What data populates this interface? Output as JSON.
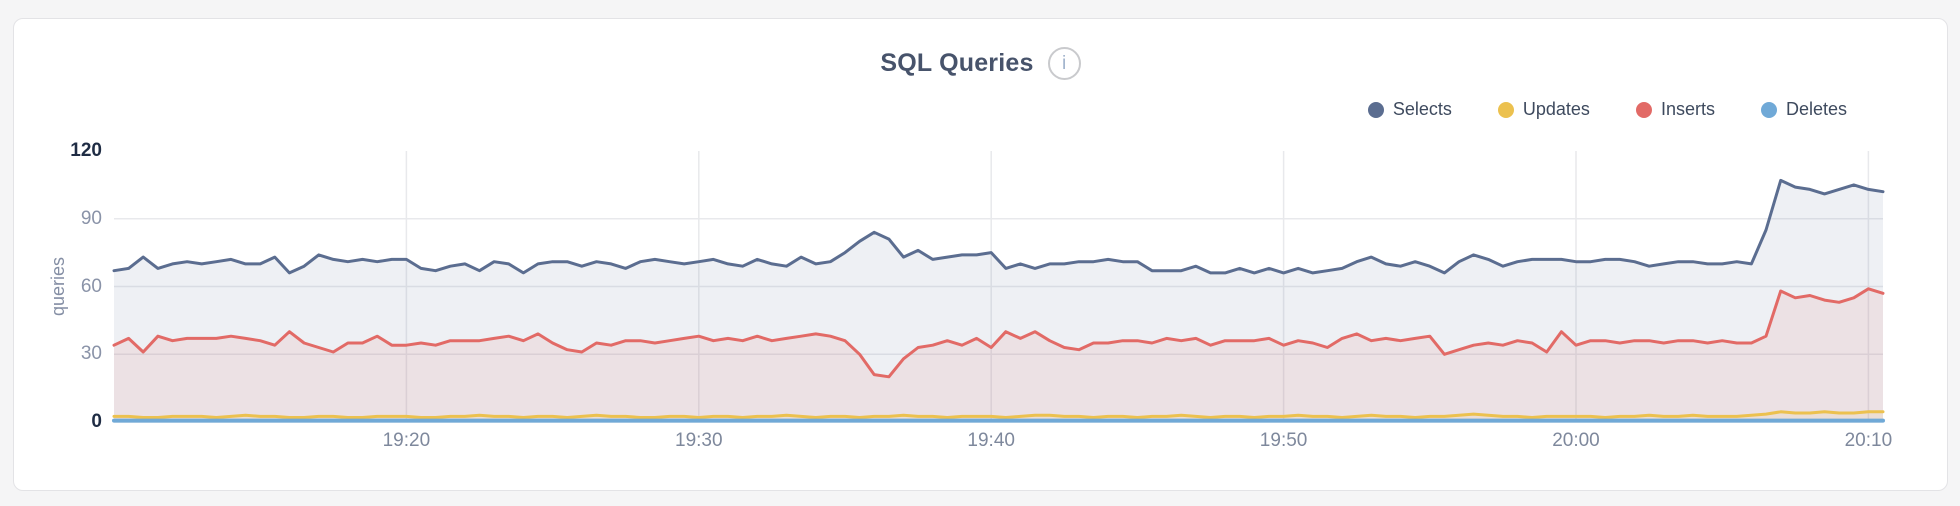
{
  "panel": {
    "info_glyph": "i"
  },
  "chart_data": {
    "type": "area",
    "title": "SQL Queries",
    "ylabel": "queries",
    "xlabel": "",
    "ylim": [
      0,
      120
    ],
    "yticks": [
      0,
      30,
      60,
      90,
      120
    ],
    "grid": true,
    "legend_position": "top-right",
    "x_total_minutes": 60.5,
    "x_interval_seconds": 30,
    "xtick_minutes": [
      10,
      20,
      30,
      40,
      50,
      60
    ],
    "xtick_labels": [
      "19:20",
      "19:30",
      "19:40",
      "19:50",
      "20:00",
      "20:10"
    ],
    "series": [
      {
        "name": "Selects",
        "color": "#5b6d90",
        "fill": "rgba(91,109,144,0.10)",
        "values": [
          67,
          68,
          73,
          68,
          70,
          71,
          70,
          71,
          72,
          70,
          70,
          73,
          66,
          69,
          74,
          72,
          71,
          72,
          71,
          72,
          72,
          68,
          67,
          69,
          70,
          67,
          71,
          70,
          66,
          70,
          71,
          71,
          69,
          71,
          70,
          68,
          71,
          72,
          71,
          70,
          71,
          72,
          70,
          69,
          72,
          70,
          69,
          73,
          70,
          71,
          75,
          80,
          84,
          81,
          73,
          76,
          72,
          73,
          74,
          74,
          75,
          68,
          70,
          68,
          70,
          70,
          71,
          71,
          72,
          71,
          71,
          67,
          67,
          67,
          69,
          66,
          66,
          68,
          66,
          68,
          66,
          68,
          66,
          67,
          68,
          71,
          73,
          70,
          69,
          71,
          69,
          66,
          71,
          74,
          72,
          69,
          71,
          72,
          72,
          72,
          71,
          71,
          72,
          72,
          71,
          69,
          70,
          71,
          71,
          70,
          70,
          71,
          70,
          85,
          107,
          104,
          103,
          101,
          103,
          105,
          103,
          102
        ]
      },
      {
        "name": "Updates",
        "color": "#ecc14f",
        "fill": "rgba(236,193,79,0.10)",
        "values": [
          2.5,
          2.5,
          2,
          2,
          2.5,
          2.5,
          2.5,
          2,
          2.5,
          3,
          2.5,
          2.5,
          2,
          2,
          2.5,
          2.5,
          2,
          2,
          2.5,
          2.5,
          2.5,
          2,
          2,
          2.5,
          2.5,
          3,
          2.5,
          2.5,
          2,
          2.5,
          2.5,
          2,
          2.5,
          3,
          2.5,
          2.5,
          2,
          2,
          2.5,
          2.5,
          2,
          2.5,
          2.5,
          2,
          2.5,
          2.5,
          3,
          2.5,
          2,
          2.5,
          2.5,
          2,
          2.5,
          2.5,
          3,
          2.5,
          2.5,
          2,
          2.5,
          2.5,
          2.5,
          2,
          2.5,
          3,
          3,
          2.5,
          2.5,
          2,
          2.5,
          2.5,
          2,
          2.5,
          2.5,
          3,
          2.5,
          2,
          2.5,
          2.5,
          2,
          2.5,
          2.5,
          3,
          2.5,
          2.5,
          2,
          2.5,
          3,
          2.5,
          2.5,
          2,
          2.5,
          2.5,
          3,
          3.5,
          3,
          2.5,
          2.5,
          2,
          2.5,
          2.5,
          2.5,
          2.5,
          2,
          2.5,
          2.5,
          3,
          2.5,
          2.5,
          3,
          2.5,
          2.5,
          2.5,
          3,
          3.5,
          4.5,
          4,
          4,
          4.5,
          4,
          4,
          4.5,
          4.5
        ]
      },
      {
        "name": "Inserts",
        "color": "#e26a66",
        "fill": "rgba(226,106,102,0.11)",
        "values": [
          34,
          37,
          31,
          38,
          36,
          37,
          37,
          37,
          38,
          37,
          36,
          34,
          40,
          35,
          33,
          31,
          35,
          35,
          38,
          34,
          34,
          35,
          34,
          36,
          36,
          36,
          37,
          38,
          36,
          39,
          35,
          32,
          31,
          35,
          34,
          36,
          36,
          35,
          36,
          37,
          38,
          36,
          37,
          36,
          38,
          36,
          37,
          38,
          39,
          38,
          36,
          30,
          21,
          20,
          28,
          33,
          34,
          36,
          34,
          37,
          33,
          40,
          37,
          40,
          36,
          33,
          32,
          35,
          35,
          36,
          36,
          35,
          37,
          36,
          37,
          34,
          36,
          36,
          36,
          37,
          34,
          36,
          35,
          33,
          37,
          39,
          36,
          37,
          36,
          37,
          38,
          30,
          32,
          34,
          35,
          34,
          36,
          35,
          31,
          40,
          34,
          36,
          36,
          35,
          36,
          36,
          35,
          36,
          36,
          35,
          36,
          35,
          35,
          38,
          58,
          55,
          56,
          54,
          53,
          55,
          59,
          57
        ]
      },
      {
        "name": "Deletes",
        "color": "#70a9d7",
        "fill": "rgba(112,169,215,0.20)",
        "values": [
          0.6,
          0.6,
          0.6,
          0.6,
          0.6,
          0.6,
          0.6,
          0.6,
          0.6,
          0.6,
          0.6,
          0.6,
          0.6,
          0.6,
          0.6,
          0.6,
          0.6,
          0.6,
          0.6,
          0.6,
          0.6,
          0.6,
          0.6,
          0.6,
          0.6,
          0.6,
          0.6,
          0.6,
          0.6,
          0.6,
          0.6,
          0.6,
          0.6,
          0.6,
          0.6,
          0.6,
          0.6,
          0.6,
          0.6,
          0.6,
          0.6,
          0.6,
          0.6,
          0.6,
          0.6,
          0.6,
          0.6,
          0.6,
          0.6,
          0.6,
          0.6,
          0.6,
          0.6,
          0.6,
          0.6,
          0.6,
          0.6,
          0.6,
          0.6,
          0.6,
          0.6,
          0.6,
          0.6,
          0.6,
          0.6,
          0.6,
          0.6,
          0.6,
          0.6,
          0.6,
          0.6,
          0.6,
          0.6,
          0.6,
          0.6,
          0.6,
          0.6,
          0.6,
          0.6,
          0.6,
          0.6,
          0.6,
          0.6,
          0.6,
          0.6,
          0.6,
          0.6,
          0.6,
          0.6,
          0.6,
          0.6,
          0.6,
          0.6,
          0.6,
          0.6,
          0.6,
          0.6,
          0.6,
          0.6,
          0.6,
          0.6,
          0.6,
          0.6,
          0.6,
          0.6,
          0.6,
          0.6,
          0.6,
          0.6,
          0.6,
          0.6,
          0.6,
          0.6,
          0.6,
          0.6,
          0.6,
          0.6,
          0.6,
          0.6,
          0.6,
          0.6,
          0.6
        ]
      }
    ]
  }
}
